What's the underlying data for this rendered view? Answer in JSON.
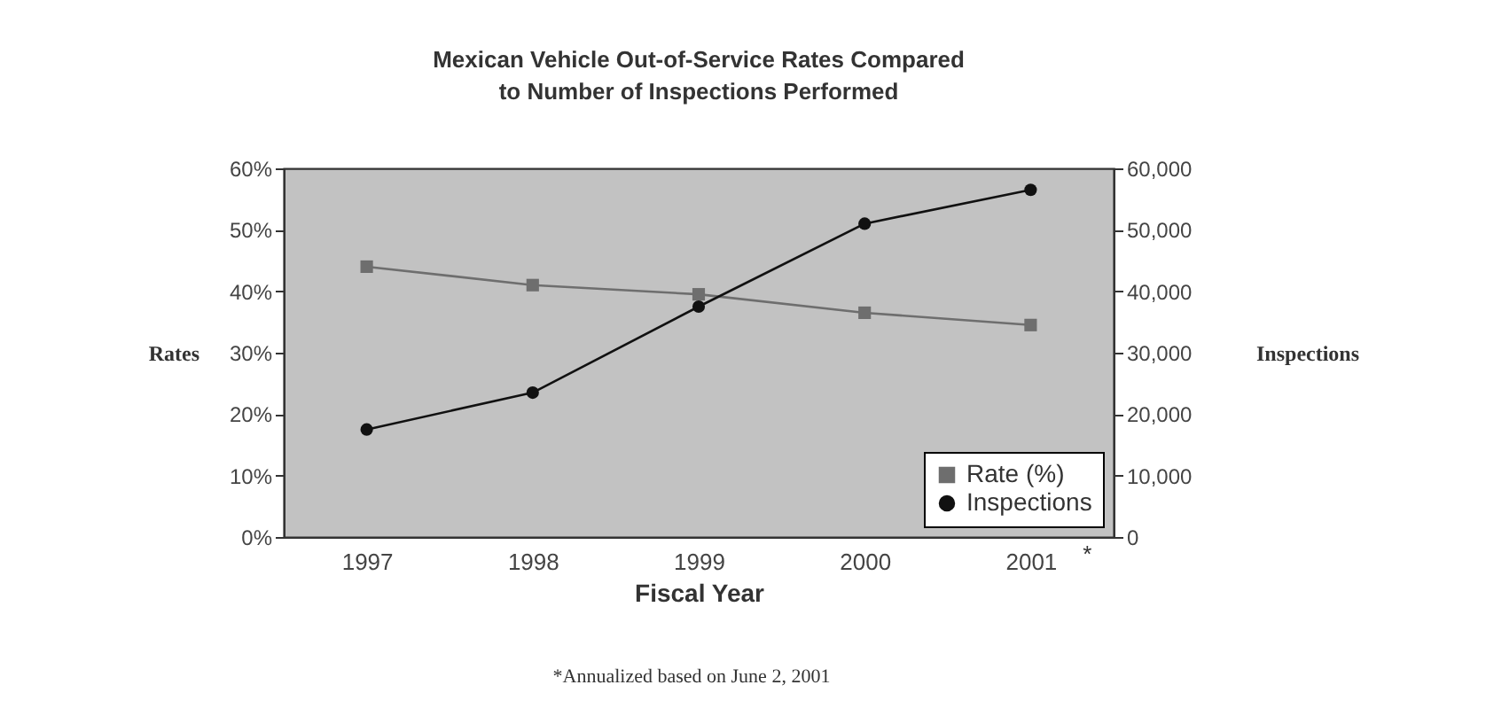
{
  "chart_data": {
    "type": "line",
    "title": "Mexican Vehicle Out-of-Service Rates Compared\nto Number of Inspections Performed",
    "xlabel": "Fiscal Year",
    "ylabel": "Rates",
    "y2label": "Inspections",
    "categories": [
      "1997",
      "1998",
      "1999",
      "2000",
      "2001"
    ],
    "series": [
      {
        "name": "Rate (%)",
        "color": "#6e6e6e",
        "marker": "square",
        "values": [
          44,
          41,
          39.5,
          36.5,
          34.5
        ]
      },
      {
        "name": "Inspections",
        "color": "#111111",
        "marker": "circle",
        "axis": "y2",
        "values": [
          17500,
          23500,
          37500,
          51000,
          56500
        ]
      }
    ],
    "ylim": [
      0,
      60
    ],
    "yticks": [
      {
        "value": 0,
        "label": "0%"
      },
      {
        "value": 10,
        "label": "10%"
      },
      {
        "value": 20,
        "label": "20%"
      },
      {
        "value": 30,
        "label": "30%"
      },
      {
        "value": 40,
        "label": "40%"
      },
      {
        "value": 50,
        "label": "50%"
      },
      {
        "value": 60,
        "label": "60%"
      }
    ],
    "y2lim": [
      0,
      60000
    ],
    "y2ticks": [
      0,
      {
        "value": 10000,
        "label": "10,000"
      },
      {
        "value": 20000,
        "label": "20,000"
      },
      {
        "value": 30000,
        "label": "30,000"
      },
      {
        "value": 40000,
        "label": "40,000"
      },
      {
        "value": 50000,
        "label": "50,000"
      },
      {
        "value": 60000,
        "label": "60,000"
      }
    ],
    "legend": "bottom right",
    "grid": false,
    "annotations": [
      "*",
      "*Annualized based on June 2, 2001"
    ]
  }
}
